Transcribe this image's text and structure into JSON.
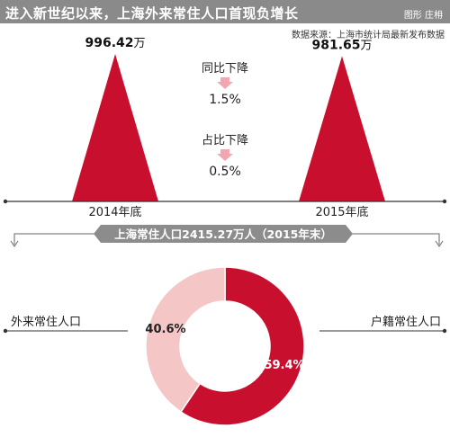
{
  "header": {
    "title": "进入新世纪以来，上海外来常住人口首现负增长",
    "credit": "图形 庄枏"
  },
  "source": "数据来源：上海市统计局最新发布数据",
  "colors": {
    "primary_red": "#c8102e",
    "light_pink": "#f4c6c6",
    "band_gray": "#8c8c8c",
    "arrow_pink": "#f2a7b0"
  },
  "chart_data": [
    {
      "type": "bar",
      "shape": "triangle",
      "unit": "万",
      "categories": [
        "2014年底",
        "2015年底"
      ],
      "values": [
        996.42,
        981.65
      ],
      "value_labels": [
        "996.42",
        "981.65"
      ],
      "annotations": [
        {
          "label": "同比下降",
          "value": "1.5%"
        },
        {
          "label": "占比下降",
          "value": "0.5%"
        }
      ]
    },
    {
      "type": "pie",
      "donut": true,
      "title": "上海常住人口2415.27万人（2015年末）",
      "slices": [
        {
          "label": "户籍常住人口",
          "value": 59.4,
          "text": "59.4%"
        },
        {
          "label": "外来常住人口",
          "value": 40.6,
          "text": "40.6%"
        }
      ]
    }
  ]
}
